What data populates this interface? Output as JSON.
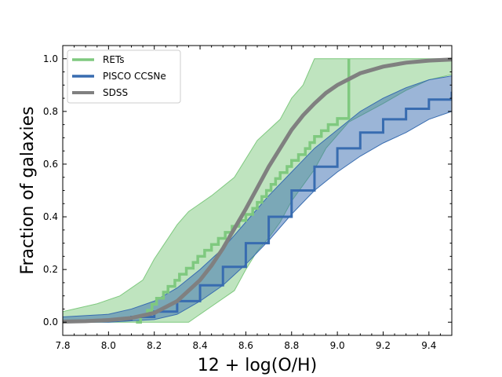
{
  "chart_data": {
    "type": "line",
    "title": "",
    "xlabel": "12 + log(O/H)",
    "ylabel": "Fraction of galaxies",
    "xlim": [
      7.8,
      9.5
    ],
    "ylim": [
      -0.05,
      1.05
    ],
    "xticks": [
      7.8,
      8.0,
      8.2,
      8.4,
      8.6,
      8.8,
      9.0,
      9.2,
      9.4
    ],
    "xtick_labels": [
      "7.8",
      "8.0",
      "8.2",
      "8.4",
      "8.6",
      "8.8",
      "9.0",
      "9.2",
      "9.4"
    ],
    "yticks": [
      0.0,
      0.2,
      0.4,
      0.6,
      0.8,
      1.0
    ],
    "ytick_labels": [
      "0.0",
      "0.2",
      "0.4",
      "0.6",
      "0.8",
      "1.0"
    ],
    "legend_position": "top-left",
    "series": [
      {
        "name": "RETs",
        "color": "#7fc97f",
        "style": "step",
        "x": [
          8.12,
          8.14,
          8.17,
          8.19,
          8.21,
          8.24,
          8.26,
          8.29,
          8.31,
          8.34,
          8.37,
          8.39,
          8.42,
          8.45,
          8.48,
          8.51,
          8.54,
          8.57,
          8.6,
          8.63,
          8.65,
          8.67,
          8.69,
          8.71,
          8.73,
          8.75,
          8.78,
          8.8,
          8.83,
          8.86,
          8.88,
          8.9,
          8.93,
          8.96,
          9.0,
          9.05
        ],
        "y": [
          0.0,
          0.023,
          0.045,
          0.068,
          0.091,
          0.114,
          0.136,
          0.159,
          0.182,
          0.205,
          0.227,
          0.25,
          0.273,
          0.295,
          0.318,
          0.341,
          0.364,
          0.386,
          0.409,
          0.432,
          0.455,
          0.477,
          0.5,
          0.523,
          0.545,
          0.568,
          0.591,
          0.614,
          0.636,
          0.659,
          0.682,
          0.705,
          0.727,
          0.75,
          0.773,
          1.0
        ],
        "band_x": [
          7.8,
          7.95,
          8.05,
          8.15,
          8.2,
          8.3,
          8.35,
          8.45,
          8.55,
          8.6,
          8.65,
          8.7,
          8.75,
          8.8,
          8.85,
          8.9,
          8.95,
          9.05,
          9.2,
          9.3,
          9.4,
          9.5
        ],
        "band_upper": [
          0.04,
          0.07,
          0.1,
          0.16,
          0.24,
          0.37,
          0.42,
          0.48,
          0.55,
          0.62,
          0.69,
          0.73,
          0.77,
          0.85,
          0.9,
          1.0,
          1.0,
          1.0,
          1.0,
          1.0,
          1.0,
          1.0
        ],
        "band_lower": [
          0.0,
          0.0,
          0.0,
          0.0,
          0.0,
          0.0,
          0.0,
          0.06,
          0.12,
          0.2,
          0.27,
          0.32,
          0.38,
          0.46,
          0.52,
          0.58,
          0.66,
          0.76,
          0.83,
          0.88,
          0.92,
          0.94
        ]
      },
      {
        "name": "PISCO CCSNe",
        "color": "#386cb0",
        "style": "step",
        "x": [
          7.8,
          8.0,
          8.1,
          8.2,
          8.3,
          8.4,
          8.5,
          8.6,
          8.7,
          8.8,
          8.9,
          9.0,
          9.1,
          9.2,
          9.3,
          9.4,
          9.5
        ],
        "y": [
          0.005,
          0.01,
          0.02,
          0.04,
          0.08,
          0.14,
          0.21,
          0.3,
          0.4,
          0.5,
          0.59,
          0.66,
          0.72,
          0.77,
          0.81,
          0.845,
          0.875
        ],
        "band_x": [
          7.8,
          8.0,
          8.1,
          8.2,
          8.3,
          8.4,
          8.5,
          8.6,
          8.7,
          8.8,
          8.9,
          9.0,
          9.1,
          9.2,
          9.3,
          9.4,
          9.5
        ],
        "band_upper": [
          0.02,
          0.03,
          0.05,
          0.08,
          0.13,
          0.2,
          0.28,
          0.38,
          0.48,
          0.57,
          0.66,
          0.73,
          0.8,
          0.85,
          0.89,
          0.92,
          0.935
        ],
        "band_lower": [
          0.0,
          0.0,
          0.005,
          0.01,
          0.03,
          0.08,
          0.14,
          0.22,
          0.31,
          0.41,
          0.5,
          0.57,
          0.63,
          0.68,
          0.72,
          0.77,
          0.8
        ]
      },
      {
        "name": "SDSS",
        "color": "#808080",
        "style": "line",
        "x": [
          7.8,
          7.9,
          8.0,
          8.1,
          8.2,
          8.3,
          8.4,
          8.45,
          8.5,
          8.55,
          8.6,
          8.65,
          8.7,
          8.75,
          8.8,
          8.85,
          8.9,
          8.95,
          9.0,
          9.1,
          9.2,
          9.3,
          9.4,
          9.5
        ],
        "y": [
          0.002,
          0.004,
          0.008,
          0.016,
          0.035,
          0.08,
          0.16,
          0.215,
          0.28,
          0.355,
          0.43,
          0.51,
          0.59,
          0.66,
          0.73,
          0.785,
          0.83,
          0.87,
          0.9,
          0.945,
          0.97,
          0.985,
          0.993,
          0.997
        ]
      }
    ]
  }
}
